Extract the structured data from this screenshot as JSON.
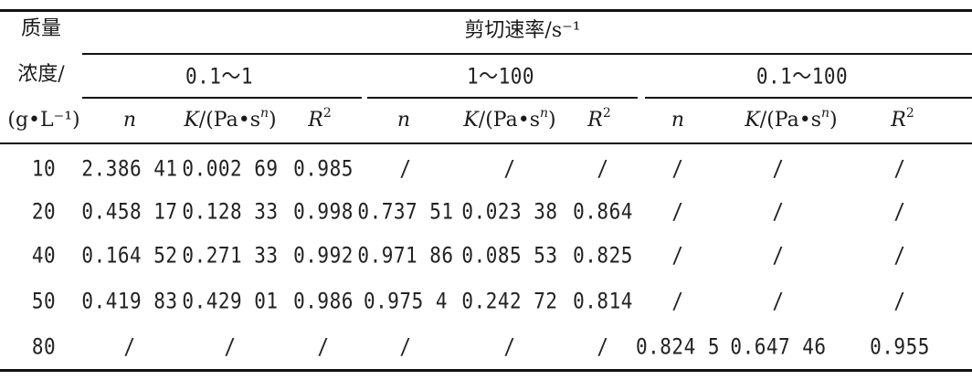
{
  "table": {
    "row_header": {
      "line1": "质量",
      "line2": "浓度/",
      "line3": "(g•L⁻¹)"
    },
    "group_header": "剪切速率/s⁻¹",
    "ranges": [
      "0.1～1",
      "1～100",
      "0.1～100"
    ],
    "sub_headers": {
      "n": "n",
      "k_prefix": "K/(Pa•s",
      "k_exp": "n",
      "k_suffix": ")",
      "r": "R",
      "r_exp": "2"
    },
    "rows": [
      {
        "conc": "10",
        "cells": [
          "2.386 41",
          "0.002 69",
          "0.985",
          "/",
          "/",
          "/",
          "/",
          "/",
          "/"
        ]
      },
      {
        "conc": "20",
        "cells": [
          "0.458 17",
          "0.128 33",
          "0.998",
          "0.737 51",
          "0.023 38",
          "0.864",
          "/",
          "/",
          "/"
        ]
      },
      {
        "conc": "40",
        "cells": [
          "0.164 52",
          "0.271 33",
          "0.992",
          "0.971 86",
          "0.085 53",
          "0.825",
          "/",
          "/",
          "/"
        ]
      },
      {
        "conc": "50",
        "cells": [
          "0.419 83",
          "0.429 01",
          "0.986",
          "0.975 4",
          "0.242 72",
          "0.814",
          "/",
          "/",
          "/"
        ]
      },
      {
        "conc": "80",
        "cells": [
          "/",
          "/",
          "/",
          "/",
          "/",
          "/",
          "0.824 5",
          "0.647 46",
          "0.955"
        ]
      }
    ]
  }
}
